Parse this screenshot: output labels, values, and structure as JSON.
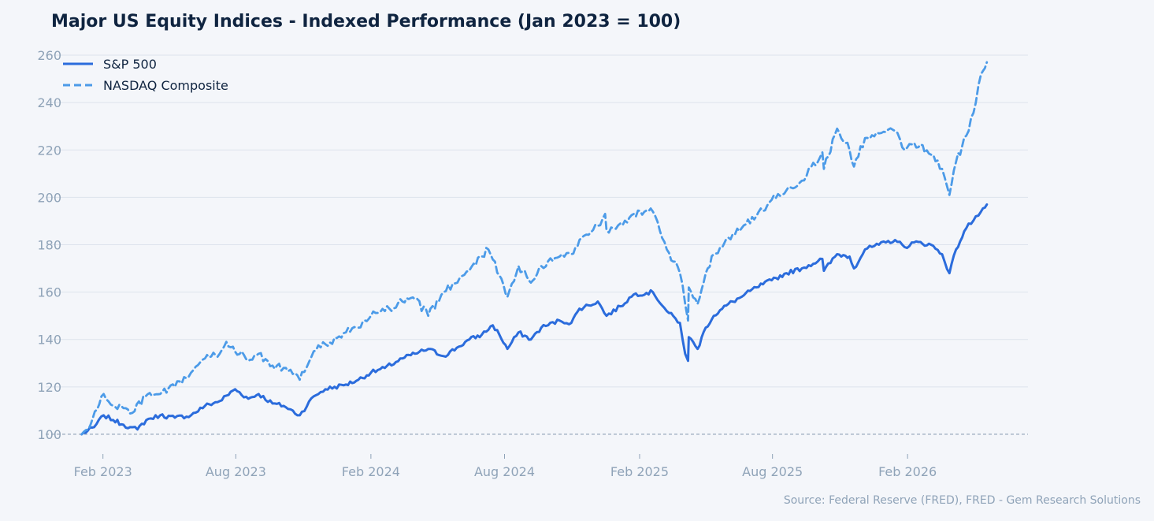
{
  "chart_data": {
    "type": "line",
    "title": "Major US Equity Indices - Indexed Performance (Jan 2023 = 100)",
    "xlabel": "",
    "ylabel": "",
    "source": "Source: Federal Reserve (FRED), FRED - Gem Research Solutions",
    "x_start": "2023-01-03",
    "x_end": "2026-05-20",
    "xlim": [
      "2022-11-15",
      "2026-07-15"
    ],
    "ylim": [
      92,
      265
    ],
    "y_ticks": [
      100,
      120,
      140,
      160,
      180,
      200,
      220,
      240,
      260
    ],
    "x_ticks": [
      {
        "date": "2023-02-01",
        "label": "Feb 2023"
      },
      {
        "date": "2023-08-01",
        "label": "Aug 2023"
      },
      {
        "date": "2024-02-01",
        "label": "Feb 2024"
      },
      {
        "date": "2024-08-01",
        "label": "Aug 2024"
      },
      {
        "date": "2025-02-01",
        "label": "Feb 2025"
      },
      {
        "date": "2025-08-01",
        "label": "Aug 2025"
      },
      {
        "date": "2026-02-01",
        "label": "Feb 2026"
      }
    ],
    "baseline": 100,
    "grid": true,
    "legend_position": "top-left",
    "series": [
      {
        "name": "S&P 500",
        "color": "#2b6cdc",
        "style": "solid",
        "points": [
          [
            "2023-01-03",
            100
          ],
          [
            "2023-01-20",
            103
          ],
          [
            "2023-02-02",
            108
          ],
          [
            "2023-02-15",
            106
          ],
          [
            "2023-03-01",
            104
          ],
          [
            "2023-03-10",
            103
          ],
          [
            "2023-03-20",
            102
          ],
          [
            "2023-04-01",
            106
          ],
          [
            "2023-04-20",
            108
          ],
          [
            "2023-05-10",
            107
          ],
          [
            "2023-06-01",
            108
          ],
          [
            "2023-06-20",
            112
          ],
          [
            "2023-07-10",
            114
          ],
          [
            "2023-07-31",
            119
          ],
          [
            "2023-08-18",
            115
          ],
          [
            "2023-09-01",
            117
          ],
          [
            "2023-09-20",
            113
          ],
          [
            "2023-10-05",
            112
          ],
          [
            "2023-10-27",
            108
          ],
          [
            "2023-11-15",
            116
          ],
          [
            "2023-12-01",
            119
          ],
          [
            "2023-12-29",
            121
          ],
          [
            "2024-01-15",
            123
          ],
          [
            "2024-02-01",
            126
          ],
          [
            "2024-02-20",
            128
          ],
          [
            "2024-03-15",
            132
          ],
          [
            "2024-04-01",
            134
          ],
          [
            "2024-04-19",
            136
          ],
          [
            "2024-05-10",
            133
          ],
          [
            "2024-05-31",
            137
          ],
          [
            "2024-06-14",
            140
          ],
          [
            "2024-07-01",
            142
          ],
          [
            "2024-07-16",
            146
          ],
          [
            "2024-07-25",
            142
          ],
          [
            "2024-08-05",
            136
          ],
          [
            "2024-08-20",
            143
          ],
          [
            "2024-09-06",
            140
          ],
          [
            "2024-09-20",
            145
          ],
          [
            "2024-10-15",
            148
          ],
          [
            "2024-10-31",
            147
          ],
          [
            "2024-11-11",
            153
          ],
          [
            "2024-12-06",
            156
          ],
          [
            "2024-12-18",
            150
          ],
          [
            "2025-01-06",
            154
          ],
          [
            "2025-01-24",
            159
          ],
          [
            "2025-02-19",
            160
          ],
          [
            "2025-03-10",
            152
          ],
          [
            "2025-03-28",
            147
          ],
          [
            "2025-04-04",
            134
          ],
          [
            "2025-04-08",
            131
          ],
          [
            "2025-04-09",
            141
          ],
          [
            "2025-04-21",
            136
          ],
          [
            "2025-05-02",
            145
          ],
          [
            "2025-05-13",
            150
          ],
          [
            "2025-06-02",
            155
          ],
          [
            "2025-06-20",
            158
          ],
          [
            "2025-07-10",
            162
          ],
          [
            "2025-07-31",
            165
          ],
          [
            "2025-08-20",
            168
          ],
          [
            "2025-09-10",
            170
          ],
          [
            "2025-10-08",
            174
          ],
          [
            "2025-10-10",
            169
          ],
          [
            "2025-10-28",
            176
          ],
          [
            "2025-11-14",
            175
          ],
          [
            "2025-11-20",
            170
          ],
          [
            "2025-12-05",
            178
          ],
          [
            "2025-12-24",
            180
          ],
          [
            "2026-01-15",
            182
          ],
          [
            "2026-01-28",
            179
          ],
          [
            "2026-02-10",
            181
          ],
          [
            "2026-03-05",
            180
          ],
          [
            "2026-03-20",
            176
          ],
          [
            "2026-03-30",
            168
          ],
          [
            "2026-04-08",
            178
          ],
          [
            "2026-04-22",
            187
          ],
          [
            "2026-05-05",
            192
          ],
          [
            "2026-05-12",
            194
          ],
          [
            "2026-05-20",
            197
          ]
        ]
      },
      {
        "name": "NASDAQ Composite",
        "color": "#4c9be8",
        "style": "dashed",
        "points": [
          [
            "2023-01-03",
            100
          ],
          [
            "2023-01-15",
            104
          ],
          [
            "2023-02-02",
            117
          ],
          [
            "2023-02-15",
            112
          ],
          [
            "2023-03-01",
            111
          ],
          [
            "2023-03-13",
            109
          ],
          [
            "2023-03-31",
            116
          ],
          [
            "2023-04-20",
            117
          ],
          [
            "2023-05-10",
            120
          ],
          [
            "2023-06-01",
            126
          ],
          [
            "2023-06-20",
            132
          ],
          [
            "2023-07-10",
            134
          ],
          [
            "2023-07-19",
            139
          ],
          [
            "2023-08-18",
            131
          ],
          [
            "2023-09-01",
            134
          ],
          [
            "2023-09-20",
            129
          ],
          [
            "2023-10-05",
            128
          ],
          [
            "2023-10-27",
            123
          ],
          [
            "2023-11-15",
            135
          ],
          [
            "2023-12-01",
            138
          ],
          [
            "2023-12-29",
            143
          ],
          [
            "2024-01-15",
            145
          ],
          [
            "2024-02-01",
            150
          ],
          [
            "2024-02-20",
            152
          ],
          [
            "2024-03-15",
            156
          ],
          [
            "2024-04-01",
            157
          ],
          [
            "2024-04-19",
            150
          ],
          [
            "2024-05-10",
            160
          ],
          [
            "2024-06-01",
            166
          ],
          [
            "2024-06-20",
            172
          ],
          [
            "2024-07-10",
            178
          ],
          [
            "2024-07-25",
            167
          ],
          [
            "2024-08-05",
            158
          ],
          [
            "2024-08-20",
            171
          ],
          [
            "2024-09-06",
            164
          ],
          [
            "2024-09-20",
            171
          ],
          [
            "2024-10-15",
            175
          ],
          [
            "2024-10-31",
            176
          ],
          [
            "2024-11-11",
            182
          ],
          [
            "2024-12-06",
            188
          ],
          [
            "2024-12-16",
            193
          ],
          [
            "2024-12-18",
            186
          ],
          [
            "2025-01-06",
            189
          ],
          [
            "2025-01-24",
            193
          ],
          [
            "2025-02-19",
            194
          ],
          [
            "2025-03-10",
            178
          ],
          [
            "2025-03-28",
            168
          ],
          [
            "2025-04-04",
            155
          ],
          [
            "2025-04-08",
            148
          ],
          [
            "2025-04-09",
            162
          ],
          [
            "2025-04-21",
            155
          ],
          [
            "2025-05-02",
            168
          ],
          [
            "2025-05-13",
            176
          ],
          [
            "2025-06-02",
            183
          ],
          [
            "2025-06-20",
            187
          ],
          [
            "2025-07-10",
            192
          ],
          [
            "2025-07-31",
            199
          ],
          [
            "2025-08-20",
            203
          ],
          [
            "2025-09-10",
            207
          ],
          [
            "2025-10-08",
            219
          ],
          [
            "2025-10-10",
            212
          ],
          [
            "2025-10-28",
            229
          ],
          [
            "2025-11-14",
            220
          ],
          [
            "2025-11-20",
            213
          ],
          [
            "2025-12-05",
            225
          ],
          [
            "2025-12-24",
            227
          ],
          [
            "2026-01-15",
            228
          ],
          [
            "2026-01-28",
            220
          ],
          [
            "2026-02-10",
            223
          ],
          [
            "2026-03-05",
            218
          ],
          [
            "2026-03-20",
            212
          ],
          [
            "2026-03-30",
            201
          ],
          [
            "2026-04-08",
            215
          ],
          [
            "2026-04-22",
            226
          ],
          [
            "2026-05-05",
            240
          ],
          [
            "2026-05-12",
            252
          ],
          [
            "2026-05-20",
            257
          ]
        ]
      }
    ]
  }
}
